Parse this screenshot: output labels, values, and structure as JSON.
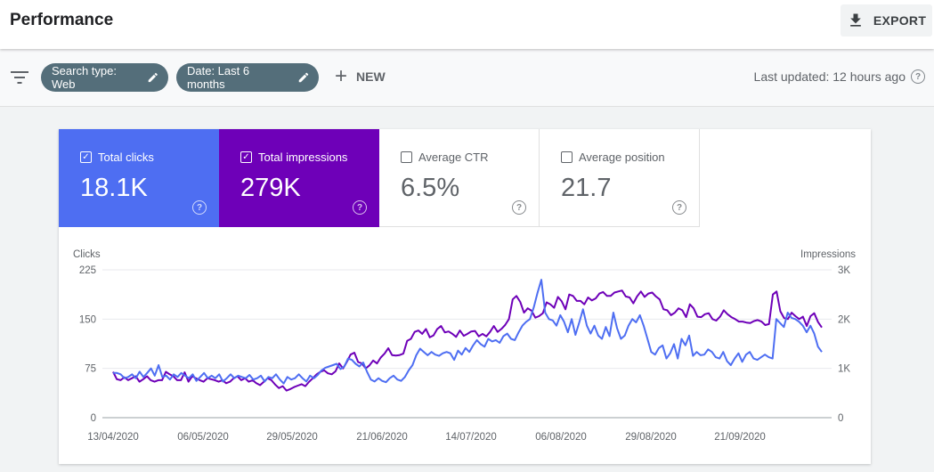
{
  "header": {
    "title": "Performance",
    "export_label": "EXPORT"
  },
  "filters": {
    "chips": [
      {
        "label": "Search type: Web"
      },
      {
        "label": "Date: Last 6 months"
      }
    ],
    "new_label": "NEW",
    "last_updated": "Last updated: 12 hours ago"
  },
  "metrics": [
    {
      "label": "Total clicks",
      "value": "18.1K",
      "checked": true
    },
    {
      "label": "Total impressions",
      "value": "279K",
      "checked": true
    },
    {
      "label": "Average CTR",
      "value": "6.5%",
      "checked": false
    },
    {
      "label": "Average position",
      "value": "21.7",
      "checked": false
    }
  ],
  "colors": {
    "clicks": "#4e6ef2",
    "impressions": "#6e00b8",
    "chip": "#546e7a"
  },
  "chart_data": {
    "type": "line",
    "ylabel": "Clicks",
    "y2label": "Impressions",
    "ylim": [
      0,
      225
    ],
    "y2lim": [
      0,
      3000
    ],
    "yticks": [
      "0",
      "75",
      "150",
      "225"
    ],
    "y2ticks": [
      "0",
      "1K",
      "2K",
      "3K"
    ],
    "xticks": [
      "13/04/2020",
      "06/05/2020",
      "29/05/2020",
      "21/06/2020",
      "14/07/2020",
      "06/08/2020",
      "29/08/2020",
      "21/09/2020"
    ],
    "grid": true,
    "series": [
      {
        "name": "Total clicks",
        "axis": "left",
        "values": [
          68,
          68,
          66,
          60,
          62,
          66,
          60,
          70,
          62,
          68,
          75,
          64,
          80,
          62,
          64,
          58,
          66,
          62,
          68,
          64,
          60,
          66,
          56,
          62,
          68,
          60,
          64,
          60,
          66,
          55,
          60,
          66,
          60,
          64,
          62,
          60,
          65,
          58,
          60,
          64,
          55,
          62,
          60,
          66,
          58,
          52,
          62,
          58,
          60,
          66,
          60,
          55,
          64,
          60,
          65,
          72,
          76,
          78,
          80,
          82,
          74,
          78,
          90,
          88,
          82,
          78,
          84,
          70,
          58,
          55,
          60,
          56,
          54,
          60,
          64,
          58,
          56,
          62,
          72,
          80,
          95,
          105,
          100,
          95,
          100,
          96,
          94,
          98,
          100,
          98,
          88,
          102,
          96,
          106,
          100,
          110,
          118,
          112,
          108,
          120,
          116,
          118,
          114,
          124,
          128,
          120,
          118,
          130,
          140,
          146,
          150,
          168,
          190,
          210,
          160,
          150,
          148,
          140,
          156,
          146,
          130,
          150,
          126,
          145,
          165,
          140,
          128,
          140,
          125,
          120,
          138,
          124,
          160,
          136,
          120,
          125,
          140,
          150,
          145,
          156,
          140,
          120,
          100,
          96,
          106,
          110,
          90,
          98,
          112,
          90,
          120,
          110,
          125,
          94,
          100,
          95,
          96,
          104,
          100,
          92,
          90,
          100,
          86,
          80,
          90,
          98,
          85,
          96,
          100,
          90,
          88,
          92,
          96,
          92,
          90,
          150,
          144,
          138,
          160,
          152,
          150,
          146,
          140,
          130,
          140,
          128,
          108,
          100
        ]
      },
      {
        "name": "Total impressions",
        "axis": "right",
        "values": [
          930,
          780,
          760,
          820,
          760,
          800,
          840,
          730,
          780,
          840,
          760,
          730,
          760,
          760,
          930,
          880,
          840,
          760,
          760,
          920,
          730,
          840,
          800,
          760,
          730,
          800,
          780,
          760,
          730,
          760,
          700,
          730,
          800,
          840,
          760,
          800,
          730,
          760,
          700,
          660,
          730,
          800,
          760,
          670,
          600,
          640,
          550,
          580,
          620,
          650,
          680,
          640,
          730,
          800,
          880,
          930,
          960,
          900,
          880,
          940,
          1100,
          1000,
          1130,
          1280,
          1320,
          1130,
          1100,
          1000,
          1060,
          1160,
          1100,
          1220,
          1300,
          1410,
          1270,
          1260,
          1270,
          1300,
          1560,
          1600,
          1740,
          1770,
          1700,
          1800,
          1630,
          1670,
          1800,
          1860,
          1730,
          1750,
          1700,
          1640,
          1770,
          1660,
          1700,
          1750,
          1760,
          1650,
          1700,
          1650,
          1740,
          1860,
          1740,
          1800,
          1880,
          2000,
          2400,
          2470,
          2350,
          2130,
          2220,
          2170,
          2030,
          2060,
          2120,
          2340,
          2300,
          2230,
          2450,
          2360,
          2200,
          2500,
          2470,
          2370,
          2370,
          2300,
          2440,
          2380,
          2420,
          2520,
          2550,
          2470,
          2470,
          2540,
          2560,
          2580,
          2460,
          2440,
          2320,
          2460,
          2560,
          2450,
          2520,
          2540,
          2460,
          2400,
          2200,
          2180,
          2080,
          2130,
          2220,
          2180,
          2040,
          2300,
          2220,
          2050,
          2040,
          2100,
          2120,
          2000,
          1970,
          2050,
          2180,
          2100,
          2040,
          2000,
          1950,
          1950,
          1930,
          1920,
          1960,
          1980,
          1950,
          1880,
          1900,
          2500,
          2560,
          2160,
          2020,
          2000,
          2130,
          2060,
          2000,
          2050,
          1860,
          2060,
          2120,
          1940,
          1830
        ]
      }
    ]
  }
}
